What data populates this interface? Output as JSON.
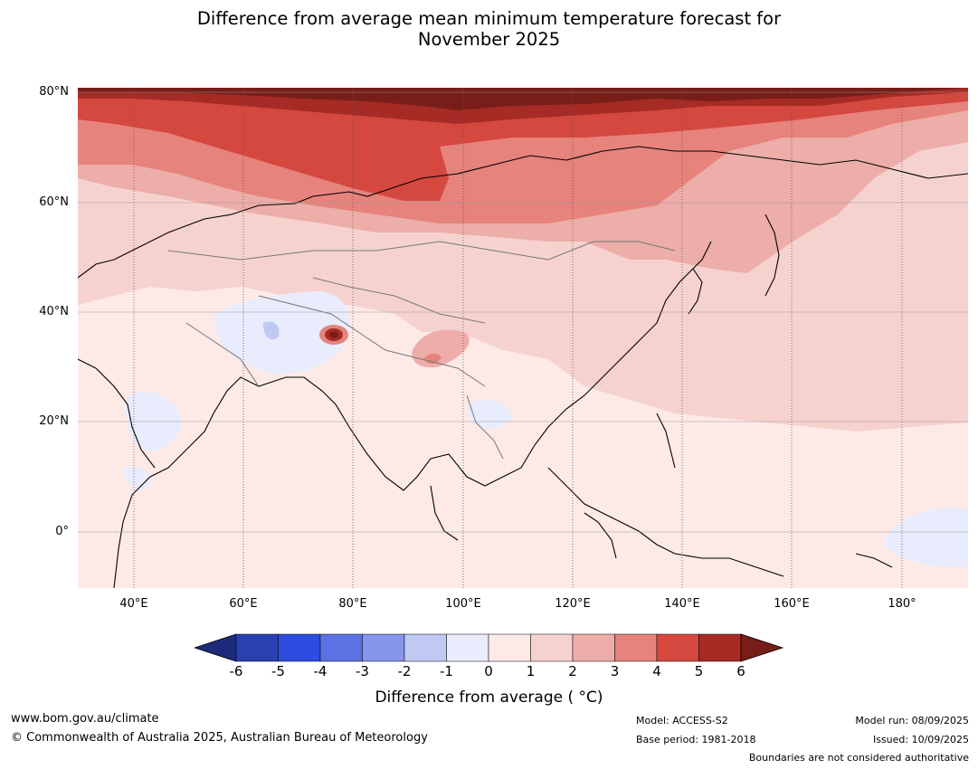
{
  "title": {
    "line1": "Difference from average mean minimum temperature forecast for",
    "line2": "November 2025"
  },
  "map": {
    "region": "Asia and western Pacific",
    "lat_labels": [
      "80°N",
      "60°N",
      "40°N",
      "20°N",
      "0°"
    ],
    "lon_labels": [
      "40°E",
      "60°E",
      "80°E",
      "100°E",
      "120°E",
      "140°E",
      "160°E",
      "180°"
    ],
    "colors": {
      "above_6": "#781d18",
      "5_6": "#a62b25",
      "4_5": "#d5483f",
      "3_4": "#e6837c",
      "2_3": "#edada8",
      "1_2": "#f6d2cf",
      "0_1": "#fdeae7",
      "minus1_0": "#e8ecfc",
      "minus2_minus1": "#c0c9f4"
    }
  },
  "colorbar": {
    "ticks": [
      "-6",
      "-5",
      "-4",
      "-3",
      "-2",
      "-1",
      "0",
      "1",
      "2",
      "3",
      "4",
      "5",
      "6"
    ],
    "colors": [
      "#1d2a7a",
      "#2a3fb0",
      "#2e4de0",
      "#5c71e3",
      "#8796ea",
      "#c0c9f4",
      "#e8ecfc",
      "#fdeae7",
      "#f6d2cf",
      "#edada8",
      "#e6837c",
      "#d5483f",
      "#a62b25",
      "#781d18"
    ],
    "label": "Difference from average ( °C)"
  },
  "footer": {
    "website": "www.bom.gov.au/climate",
    "copyright": "© Commonwealth of Australia 2025, Australian Bureau of Meteorology",
    "model": "Model: ACCESS-S2",
    "base_period": "Base period: 1981-2018",
    "model_run": "Model run: 08/09/2025",
    "issued": "Issued: 10/09/2025",
    "disclaimer": "Boundaries are not considered authoritative"
  }
}
